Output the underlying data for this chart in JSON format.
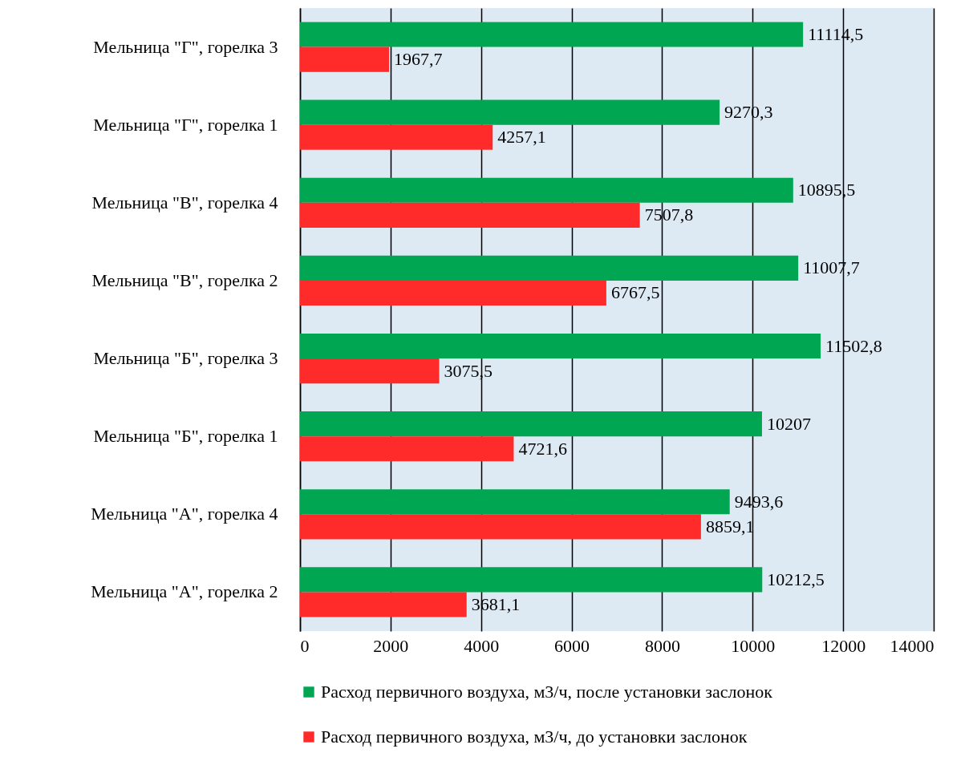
{
  "chart_data": {
    "type": "bar",
    "orientation": "horizontal",
    "categories": [
      "Мельница \"Г\", горелка 3",
      "Мельница \"Г\", горелка 1",
      "Мельница \"В\", горелка 4",
      "Мельница \"В\", горелка 2",
      "Мельница \"Б\", горелка 3",
      "Мельница \"Б\", горелка 1",
      "Мельница \"А\", горелка 4",
      "Мельница \"А\", горелка 2"
    ],
    "series": [
      {
        "name": "Расход первичного воздуха, м3/ч, после установки заслонок",
        "color": "#00a651",
        "values": [
          11114.5,
          9270.3,
          10895.5,
          11007.7,
          11502.8,
          10207,
          9493.6,
          10212.5
        ],
        "value_labels": [
          "11114,5",
          "9270,3",
          "10895,5",
          "11007,7",
          "11502,8",
          "10207",
          "9493,6",
          "10212,5"
        ]
      },
      {
        "name": "Расход первичного воздуха, м3/ч, до установки заслонок",
        "color": "#ff2a2a",
        "values": [
          1967.7,
          4257.1,
          7507.8,
          6767.5,
          3075.5,
          4721.6,
          8859.1,
          3681.1
        ],
        "value_labels": [
          "1967,7",
          "4257,1",
          "7507,8",
          "6767,5",
          "3075,5",
          "4721,6",
          "8859,1",
          "3681,1"
        ]
      }
    ],
    "xlim": [
      0,
      14000
    ],
    "xticks": [
      0,
      2000,
      4000,
      6000,
      8000,
      10000,
      12000,
      14000
    ],
    "grid": "x",
    "legend": "bottom"
  }
}
